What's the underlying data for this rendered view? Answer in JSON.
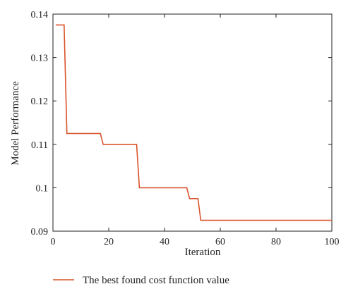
{
  "chart_data": {
    "type": "line",
    "title": "",
    "xlabel": "Iteration",
    "ylabel": "Model Performance",
    "xlim": [
      0,
      100
    ],
    "ylim": [
      0.09,
      0.14
    ],
    "x_ticks": [
      0,
      20,
      40,
      60,
      80,
      100
    ],
    "x_tick_labels": [
      "0",
      "20",
      "40",
      "60",
      "80",
      "100"
    ],
    "y_ticks": [
      0.09,
      0.1,
      0.11,
      0.12,
      0.13,
      0.14
    ],
    "y_tick_labels": [
      "0.09",
      "0.1",
      "0.11",
      "0.12",
      "0.13",
      "0.14"
    ],
    "grid": false,
    "legend_position": "bottom",
    "series": [
      {
        "name": "The best found cost function value",
        "color": "#d9532b",
        "step": true,
        "x": [
          1,
          4,
          5,
          17,
          18,
          30,
          31,
          48,
          49,
          52,
          53,
          100
        ],
        "y": [
          0.1375,
          0.1375,
          0.1125,
          0.1125,
          0.11,
          0.11,
          0.1,
          0.1,
          0.0975,
          0.0975,
          0.0925,
          0.0925
        ]
      }
    ]
  },
  "colors": {
    "axis": "#222222",
    "line": "#d9532b"
  }
}
